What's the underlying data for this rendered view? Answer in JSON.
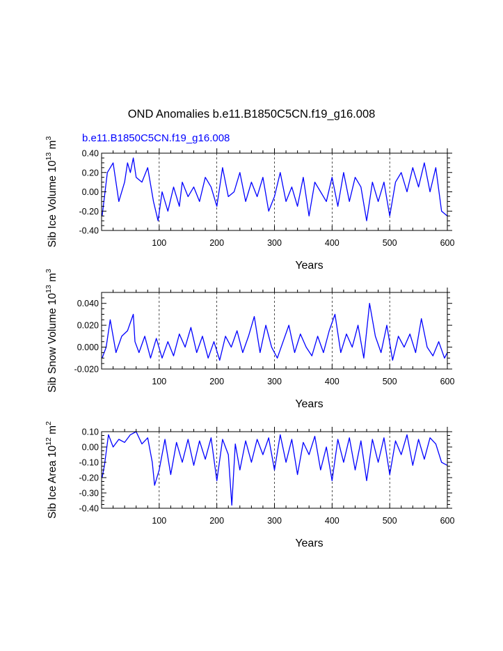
{
  "title": "OND Anomalies b.e11.B1850C5CN.f19_g16.008",
  "case_label": "b.e11.B1850C5CN.f19_g16.008",
  "colors": {
    "series": "#0000ff",
    "axis": "#000000",
    "grid": "#000000"
  },
  "chart_data": [
    {
      "type": "line",
      "xlabel": "Years",
      "ylabel": {
        "text": "Sib Ice Volume 10",
        "exp": "13",
        "unit": " m",
        "unit_exp": "3"
      },
      "xlim": [
        0,
        600
      ],
      "ylim": [
        -0.4,
        0.4
      ],
      "xticks": [
        100,
        200,
        300,
        400,
        500,
        600
      ],
      "yticks": [
        -0.4,
        -0.2,
        0.0,
        0.2,
        0.4
      ],
      "ytick_labels": [
        "-0.40",
        "-0.20",
        "0.00",
        "0.20",
        "0.40"
      ],
      "vgrid": [
        100,
        200,
        300,
        400,
        500
      ],
      "series": [
        {
          "name": "b.e11.B1850C5CN.f19_g16.008",
          "x": [
            1,
            10,
            20,
            30,
            40,
            45,
            50,
            55,
            60,
            70,
            80,
            90,
            98,
            105,
            115,
            125,
            135,
            140,
            150,
            160,
            170,
            180,
            190,
            200,
            210,
            220,
            230,
            240,
            250,
            260,
            270,
            280,
            290,
            300,
            310,
            320,
            330,
            340,
            350,
            360,
            370,
            380,
            390,
            400,
            410,
            420,
            430,
            440,
            450,
            460,
            470,
            480,
            490,
            500,
            510,
            520,
            530,
            540,
            550,
            560,
            570,
            580,
            590,
            600
          ],
          "values": [
            -0.25,
            0.2,
            0.3,
            -0.1,
            0.1,
            0.3,
            0.2,
            0.35,
            0.15,
            0.1,
            0.25,
            -0.1,
            -0.3,
            0.0,
            -0.2,
            0.05,
            -0.15,
            0.1,
            -0.05,
            0.05,
            -0.1,
            0.15,
            0.05,
            -0.15,
            0.25,
            -0.05,
            0.0,
            0.2,
            -0.1,
            0.1,
            -0.05,
            0.15,
            -0.2,
            -0.05,
            0.2,
            -0.1,
            0.05,
            -0.15,
            0.15,
            -0.25,
            0.1,
            0.0,
            -0.1,
            0.15,
            -0.15,
            0.2,
            -0.1,
            0.15,
            0.05,
            -0.3,
            0.1,
            -0.1,
            0.1,
            -0.25,
            0.1,
            0.2,
            0.0,
            0.25,
            0.05,
            0.3,
            0.0,
            0.25,
            -0.2,
            -0.25
          ]
        }
      ]
    },
    {
      "type": "line",
      "xlabel": "Years",
      "ylabel": {
        "text": "Sib Snow Volume 10",
        "exp": "13",
        "unit": " m",
        "unit_exp": "3"
      },
      "xlim": [
        0,
        600
      ],
      "ylim": [
        -0.02,
        0.05
      ],
      "xticks": [
        100,
        200,
        300,
        400,
        500,
        600
      ],
      "yticks": [
        -0.02,
        0.0,
        0.02,
        0.04
      ],
      "ytick_labels": [
        "-0.020",
        "0.000",
        "0.020",
        "0.040"
      ],
      "vgrid": [
        100,
        200,
        300,
        400,
        500
      ],
      "series": [
        {
          "name": "b.e11.B1850C5CN.f19_g16.008",
          "x": [
            1,
            8,
            15,
            25,
            35,
            45,
            55,
            58,
            65,
            75,
            85,
            95,
            105,
            115,
            125,
            135,
            145,
            155,
            165,
            175,
            185,
            195,
            205,
            215,
            225,
            235,
            245,
            255,
            265,
            275,
            285,
            295,
            305,
            315,
            325,
            335,
            345,
            355,
            365,
            375,
            385,
            395,
            405,
            415,
            425,
            435,
            445,
            455,
            465,
            475,
            485,
            495,
            505,
            515,
            525,
            535,
            545,
            555,
            565,
            575,
            585,
            595,
            600
          ],
          "values": [
            -0.01,
            0.0,
            0.025,
            -0.005,
            0.01,
            0.015,
            0.03,
            0.005,
            -0.005,
            0.01,
            -0.01,
            0.008,
            -0.01,
            0.005,
            -0.008,
            0.012,
            0.0,
            0.018,
            -0.005,
            0.01,
            -0.01,
            0.005,
            -0.012,
            0.01,
            0.0,
            0.015,
            -0.005,
            0.01,
            0.028,
            -0.005,
            0.02,
            0.0,
            -0.01,
            0.005,
            0.02,
            -0.005,
            0.012,
            0.0,
            -0.008,
            0.01,
            -0.005,
            0.015,
            0.03,
            -0.005,
            0.012,
            0.0,
            0.02,
            -0.01,
            0.04,
            0.01,
            -0.005,
            0.02,
            -0.012,
            0.01,
            0.0,
            0.012,
            -0.005,
            0.026,
            0.0,
            -0.008,
            0.005,
            -0.01,
            -0.005
          ]
        }
      ]
    },
    {
      "type": "line",
      "xlabel": "Years",
      "ylabel": {
        "text": "Sib Ice Area 10",
        "exp": "12",
        "unit": " m",
        "unit_exp": "2"
      },
      "xlim": [
        0,
        600
      ],
      "ylim": [
        -0.4,
        0.1
      ],
      "xticks": [
        100,
        200,
        300,
        400,
        500,
        600
      ],
      "yticks": [
        -0.4,
        -0.3,
        -0.2,
        -0.1,
        0.0,
        0.1
      ],
      "ytick_labels": [
        "-0.40",
        "-0.30",
        "-0.20",
        "-0.10",
        "0.00",
        "0.10"
      ],
      "vgrid": [
        100,
        200,
        300,
        400,
        500
      ],
      "series": [
        {
          "name": "b.e11.B1850C5CN.f19_g16.008",
          "x": [
            1,
            5,
            12,
            20,
            30,
            40,
            50,
            60,
            70,
            80,
            88,
            92,
            100,
            110,
            120,
            130,
            140,
            150,
            160,
            170,
            180,
            190,
            200,
            210,
            220,
            226,
            232,
            240,
            250,
            260,
            270,
            280,
            290,
            300,
            310,
            320,
            330,
            340,
            350,
            360,
            370,
            380,
            390,
            400,
            410,
            420,
            430,
            440,
            450,
            460,
            470,
            480,
            490,
            500,
            510,
            520,
            530,
            540,
            550,
            560,
            570,
            580,
            590,
            600
          ],
          "values": [
            -0.2,
            -0.12,
            0.08,
            0.0,
            0.05,
            0.03,
            0.08,
            0.1,
            0.02,
            0.06,
            -0.1,
            -0.25,
            -0.15,
            0.05,
            -0.18,
            0.03,
            -0.1,
            0.05,
            -0.12,
            0.04,
            -0.08,
            0.06,
            -0.22,
            0.05,
            -0.05,
            -0.38,
            0.02,
            -0.15,
            0.04,
            -0.1,
            0.05,
            -0.05,
            0.06,
            -0.15,
            0.08,
            -0.1,
            0.05,
            -0.18,
            0.03,
            -0.05,
            0.07,
            -0.15,
            0.0,
            -0.22,
            0.05,
            -0.1,
            0.06,
            -0.15,
            0.04,
            -0.22,
            0.05,
            -0.1,
            0.06,
            -0.18,
            0.04,
            -0.05,
            0.08,
            -0.12,
            0.05,
            -0.08,
            0.06,
            0.02,
            -0.1,
            -0.12
          ]
        }
      ]
    }
  ]
}
